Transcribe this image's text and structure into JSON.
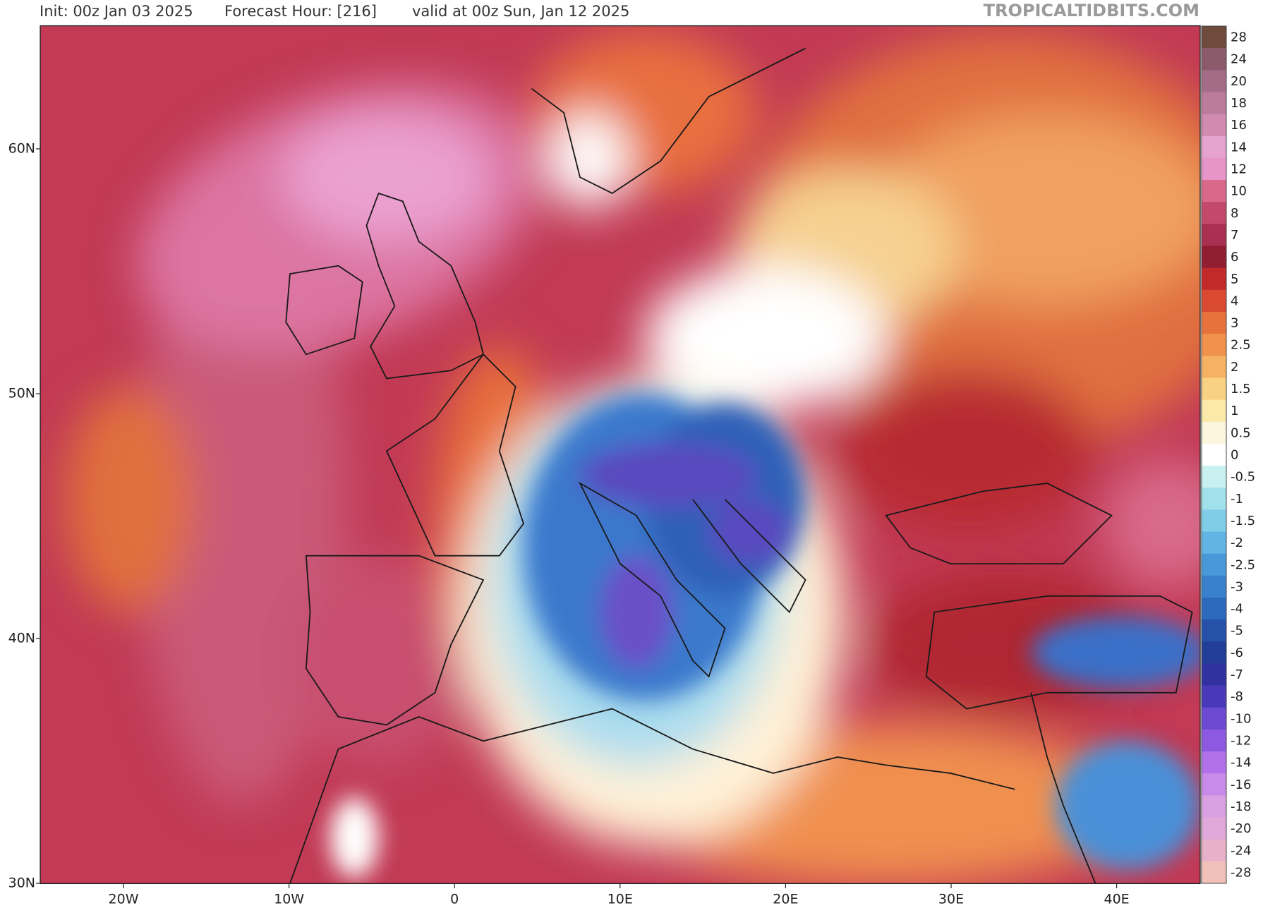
{
  "header": {
    "init": "Init: 00z Jan 03 2025",
    "forecast_hour": "Forecast Hour: [216]",
    "valid": "valid at 00z Sun, Jan 12 2025",
    "site": "TROPICALTIDBITS.COM"
  },
  "axes": {
    "lat_labels": [
      "60N",
      "50N",
      "40N",
      "30N"
    ],
    "lon_labels": [
      "20W",
      "10W",
      "0",
      "10E",
      "20E",
      "30E",
      "40E"
    ]
  },
  "colorbar": {
    "levels": [
      28,
      24,
      20,
      18,
      16,
      14,
      12,
      10,
      8,
      7,
      6,
      5,
      4,
      3,
      2.5,
      2,
      1.5,
      1,
      0.5,
      0,
      -0.5,
      -1,
      -1.5,
      -2,
      -2.5,
      -3,
      -4,
      -5,
      -6,
      -7,
      -8,
      -10,
      -12,
      -14,
      -16,
      -18,
      -20,
      -24,
      -28
    ],
    "colors": [
      "#6e4b3c",
      "#8c5b6b",
      "#a46c86",
      "#bb7c9c",
      "#d18bb0",
      "#e6a3cf",
      "#e794c9",
      "#d9698b",
      "#c2496a",
      "#a93051",
      "#911d33",
      "#c22a2a",
      "#d94a31",
      "#e8723c",
      "#f0924b",
      "#f4b262",
      "#f8d183",
      "#fbe9a9",
      "#fdf6de",
      "#ffffff",
      "#c9f0f0",
      "#a1e1ec",
      "#81cde8",
      "#61b5e4",
      "#4999d8",
      "#3981cc",
      "#2d69bc",
      "#2551a8",
      "#213d98",
      "#3131a1",
      "#4939b9",
      "#6b49d1",
      "#8d59e1",
      "#b171e9",
      "#c98be9",
      "#d9a1e1",
      "#e1a9d9",
      "#e9b1c9",
      "#f1c1b9"
    ]
  }
}
